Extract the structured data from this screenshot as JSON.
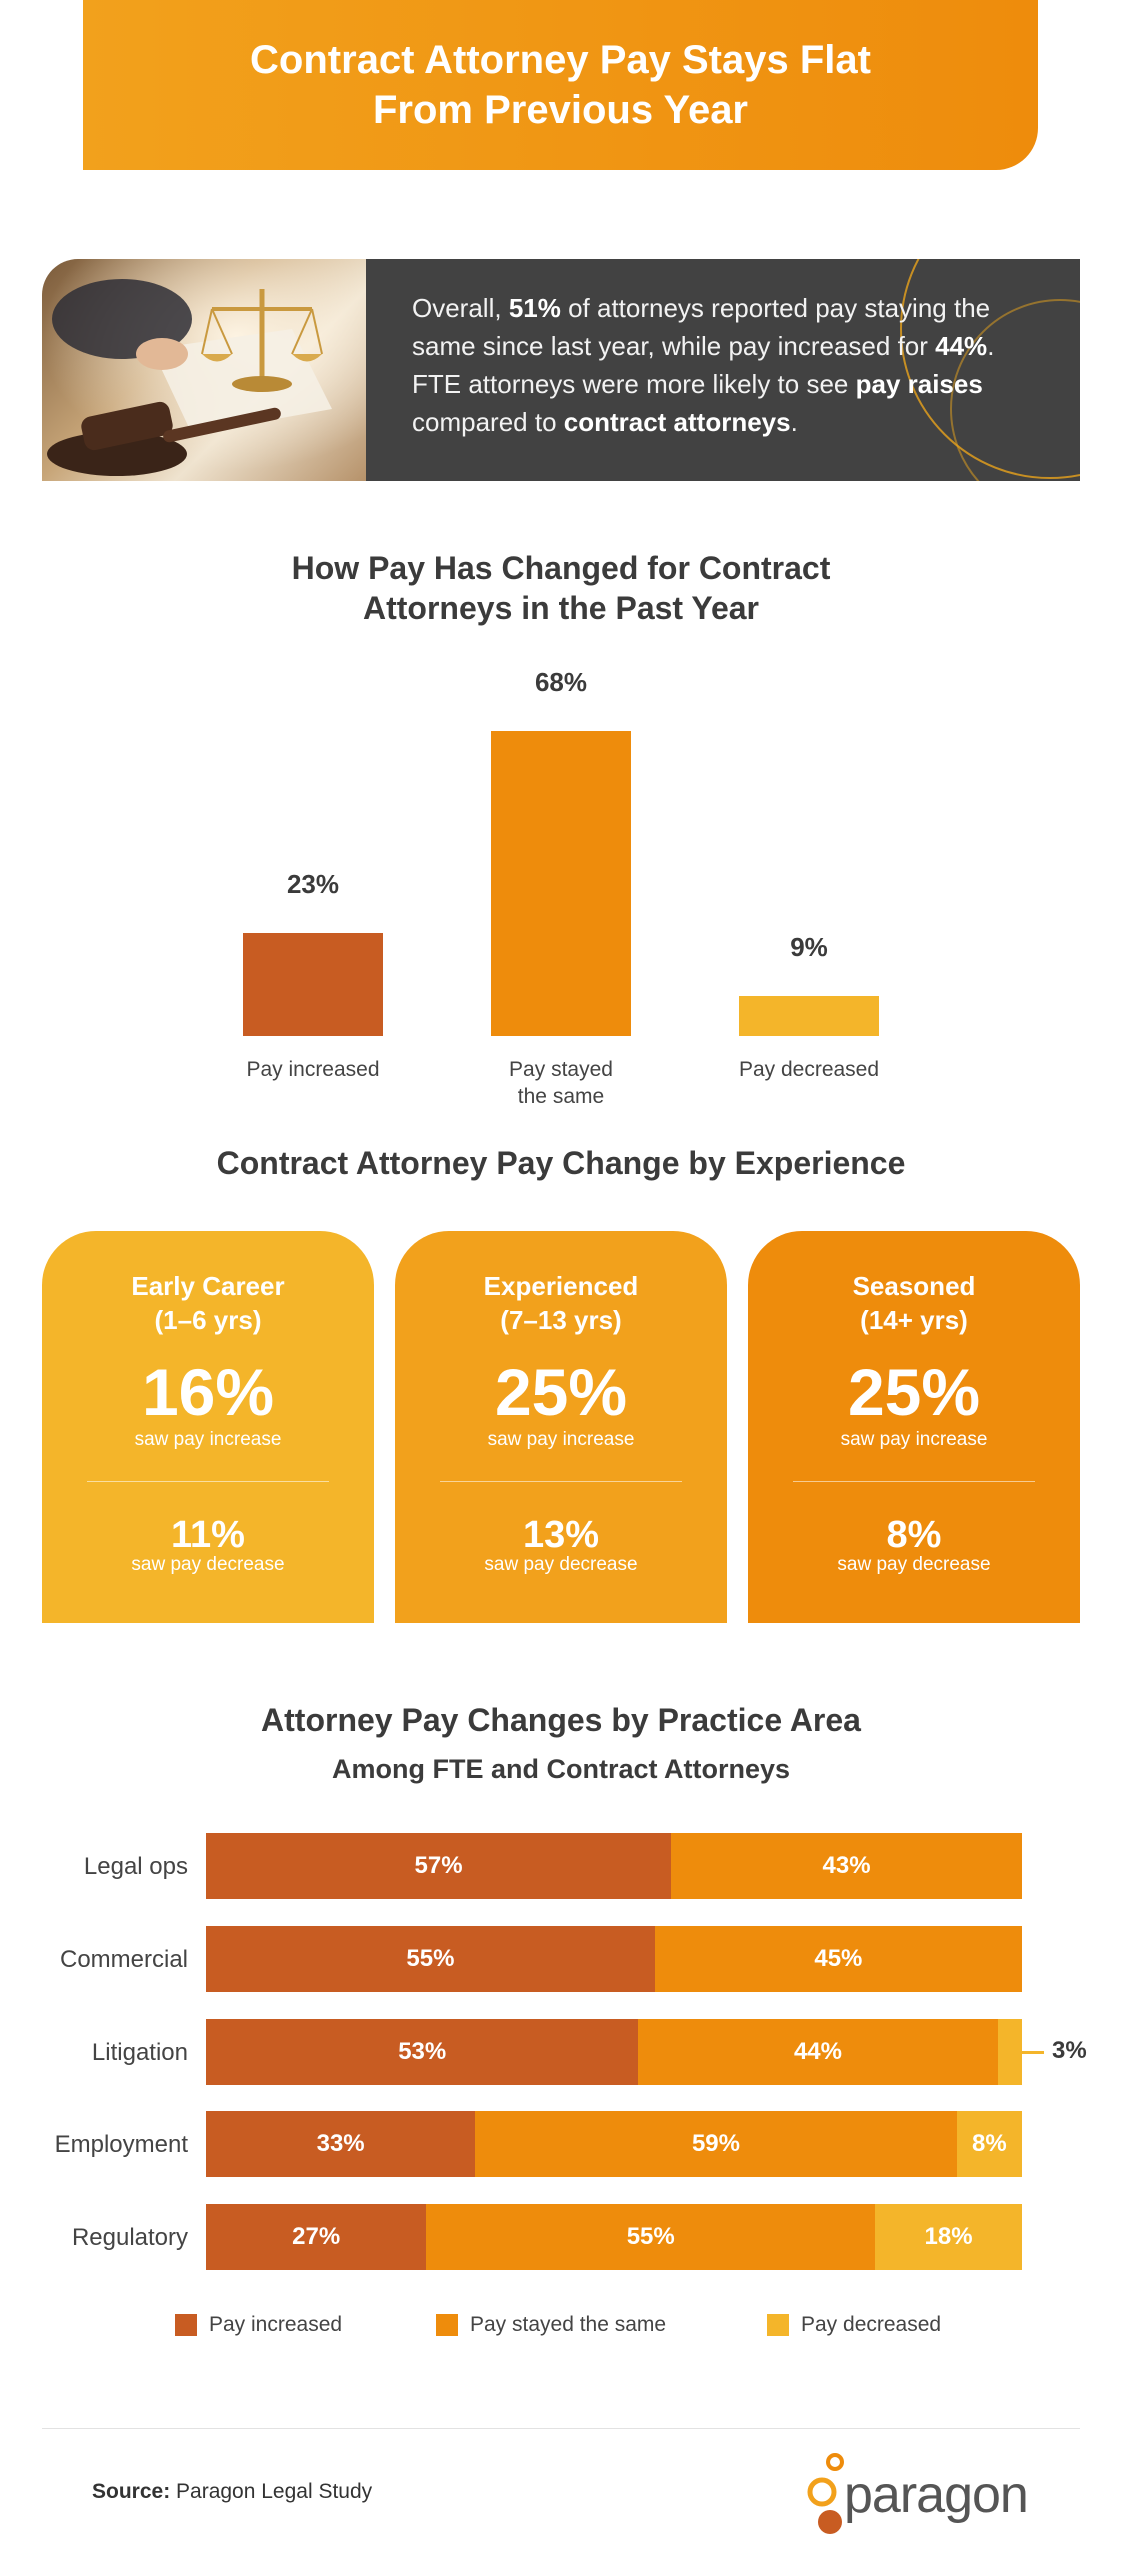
{
  "header": {
    "title_line1": "Contract Attorney Pay Stays Flat",
    "title_line2": "From Previous Year"
  },
  "intro": {
    "t1": "Overall, ",
    "b1": "51%",
    "t2": " of attorneys reported pay staying the same since last year, while pay increased for ",
    "b2": "44%",
    "t3": ". FTE attorneys were more likely to see ",
    "b3": "pay raises",
    "t4": " compared to ",
    "b4": "contract attorneys",
    "t5": "."
  },
  "colors": {
    "increase": "#c85c22",
    "same": "#ee8c0c",
    "decrease": "#f4b52a",
    "card1": "#f4b52a",
    "card2": "#f2a11c",
    "card3": "#ee8c0c"
  },
  "chart_data": [
    {
      "type": "bar",
      "title": "How Pay Has Changed for Contract Attorneys in the Past Year",
      "title_line1": "How Pay Has Changed for Contract",
      "title_line2": "Attorneys in the Past Year",
      "categories": [
        "Pay increased",
        "Pay stayed the same",
        "Pay decreased"
      ],
      "category_lines": [
        [
          "Pay increased"
        ],
        [
          "Pay stayed",
          "the same"
        ],
        [
          "Pay decreased"
        ]
      ],
      "values": [
        23,
        68,
        9
      ],
      "labels": [
        "23%",
        "68%",
        "9%"
      ],
      "ylim": [
        0,
        68
      ],
      "grid": false
    },
    {
      "type": "table",
      "title": "Contract Attorney Pay Change by Experience",
      "groups": [
        {
          "name_line1": "Early Career",
          "name_line2": "(1–6 yrs)",
          "increase": "16%",
          "increase_label": "saw pay increase",
          "decrease": "11%",
          "decrease_label": "saw pay decrease"
        },
        {
          "name_line1": "Experienced",
          "name_line2": "(7–13 yrs)",
          "increase": "25%",
          "increase_label": "saw pay increase",
          "decrease": "13%",
          "decrease_label": "saw pay decrease"
        },
        {
          "name_line1": "Seasoned",
          "name_line2": "(14+ yrs)",
          "increase": "25%",
          "increase_label": "saw pay increase",
          "decrease": "8%",
          "decrease_label": "saw pay decrease"
        }
      ]
    },
    {
      "type": "bar",
      "orientation": "horizontal-stacked",
      "title": "Attorney Pay Changes by Practice Area",
      "subtitle": "Among FTE and Contract Attorneys",
      "categories": [
        "Legal ops",
        "Commercial",
        "Litigation",
        "Employment",
        "Regulatory"
      ],
      "series": [
        {
          "name": "Pay increased",
          "values": [
            57,
            55,
            53,
            33,
            27
          ]
        },
        {
          "name": "Pay stayed the same",
          "values": [
            43,
            45,
            44,
            59,
            55
          ]
        },
        {
          "name": "Pay decreased",
          "values": [
            0,
            0,
            3,
            8,
            18
          ]
        }
      ],
      "legend": "bottom",
      "grid": false
    }
  ],
  "footer": {
    "source_label": "Source:",
    "source_text": " Paragon Legal Study",
    "logo_text": "paragon"
  }
}
